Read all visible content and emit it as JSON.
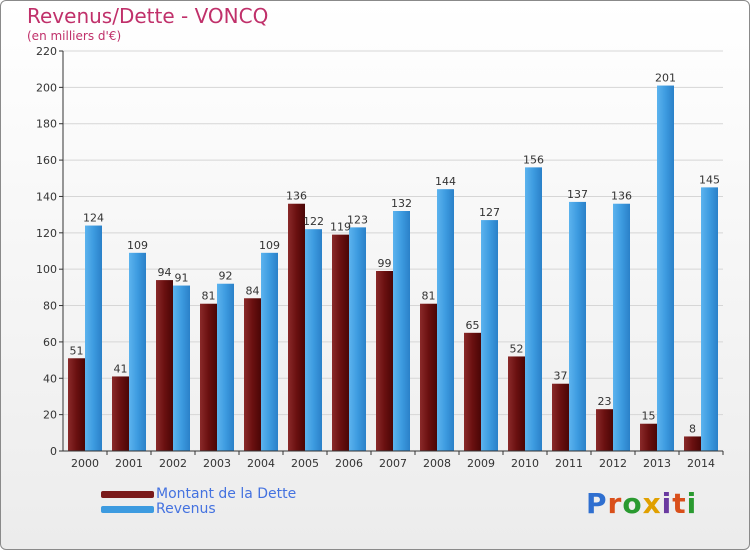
{
  "title": "Revenus/Dette - VONCQ",
  "subtitle": "(en milliers d'€)",
  "brand": "Proxiti",
  "colors": {
    "title": "#c0306a",
    "dette": "#7a1a1a",
    "revenus": "#3d9be0",
    "legend_text": "#4472e0",
    "brand_letters": [
      "#2f6fd0",
      "#d94f1a",
      "#2a9a30",
      "#e0a000",
      "#6a3aa0",
      "#d94f1a",
      "#2a9a30"
    ]
  },
  "legend": [
    {
      "label": "Montant de la Dette",
      "color": "#7a1a1a"
    },
    {
      "label": "Revenus",
      "color": "#3d9be0"
    }
  ],
  "chart_data": {
    "type": "bar",
    "title": "Revenus/Dette - VONCQ",
    "ylabel": "(en milliers d'€)",
    "xlabel": "",
    "ylim": [
      0,
      220
    ],
    "yticks": [
      0,
      20,
      40,
      60,
      80,
      100,
      120,
      140,
      160,
      180,
      200,
      220
    ],
    "grid": true,
    "categories": [
      "2000",
      "2001",
      "2002",
      "2003",
      "2004",
      "2005",
      "2006",
      "2007",
      "2008",
      "2009",
      "2010",
      "2011",
      "2012",
      "2013",
      "2014"
    ],
    "series": [
      {
        "name": "Montant de la Dette",
        "values": [
          51,
          41,
          94,
          81,
          84,
          136,
          119,
          99,
          81,
          65,
          52,
          37,
          23,
          15,
          8
        ]
      },
      {
        "name": "Revenus",
        "values": [
          124,
          109,
          91,
          92,
          109,
          122,
          123,
          132,
          144,
          127,
          156,
          137,
          136,
          201,
          145
        ]
      }
    ]
  }
}
